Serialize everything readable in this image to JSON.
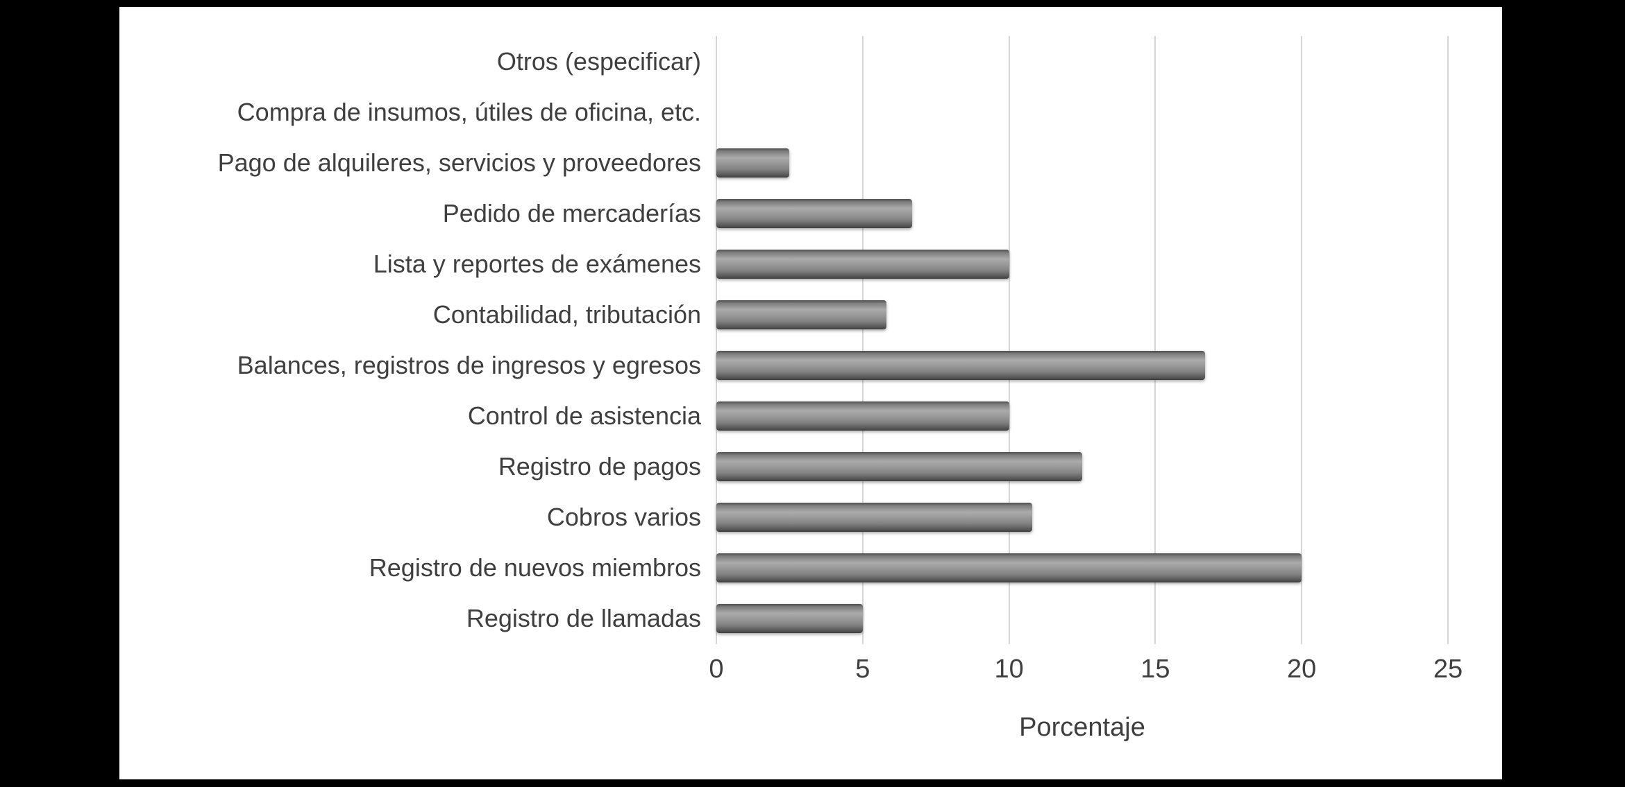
{
  "chart_data": {
    "type": "bar",
    "orientation": "horizontal",
    "title": "",
    "xlabel": "Porcentaje",
    "ylabel": "",
    "xlim": [
      0,
      25
    ],
    "xticks": [
      0,
      5,
      10,
      15,
      20,
      25
    ],
    "grid": true,
    "legend": "none",
    "categories": [
      "Otros (especificar)",
      "Compra de insumos, útiles de oficina, etc.",
      "Pago de alquileres, servicios y proveedores",
      "Pedido de mercaderías",
      "Lista y reportes de exámenes",
      "Contabilidad, tributación",
      "Balances, registros de ingresos y egresos",
      "Control de asistencia",
      "Registro de pagos",
      "Cobros varios",
      "Registro de nuevos miembros",
      "Registro de llamadas"
    ],
    "values": [
      0,
      0,
      2.5,
      6.7,
      10,
      5.8,
      16.7,
      10,
      12.5,
      10.8,
      20,
      5
    ]
  },
  "colors": {
    "page_background": "#000000",
    "panel_background": "#ffffff",
    "bar_fill": "#8c8c8c",
    "gridline": "#d6d6d6",
    "text": "#3f3f3f"
  }
}
